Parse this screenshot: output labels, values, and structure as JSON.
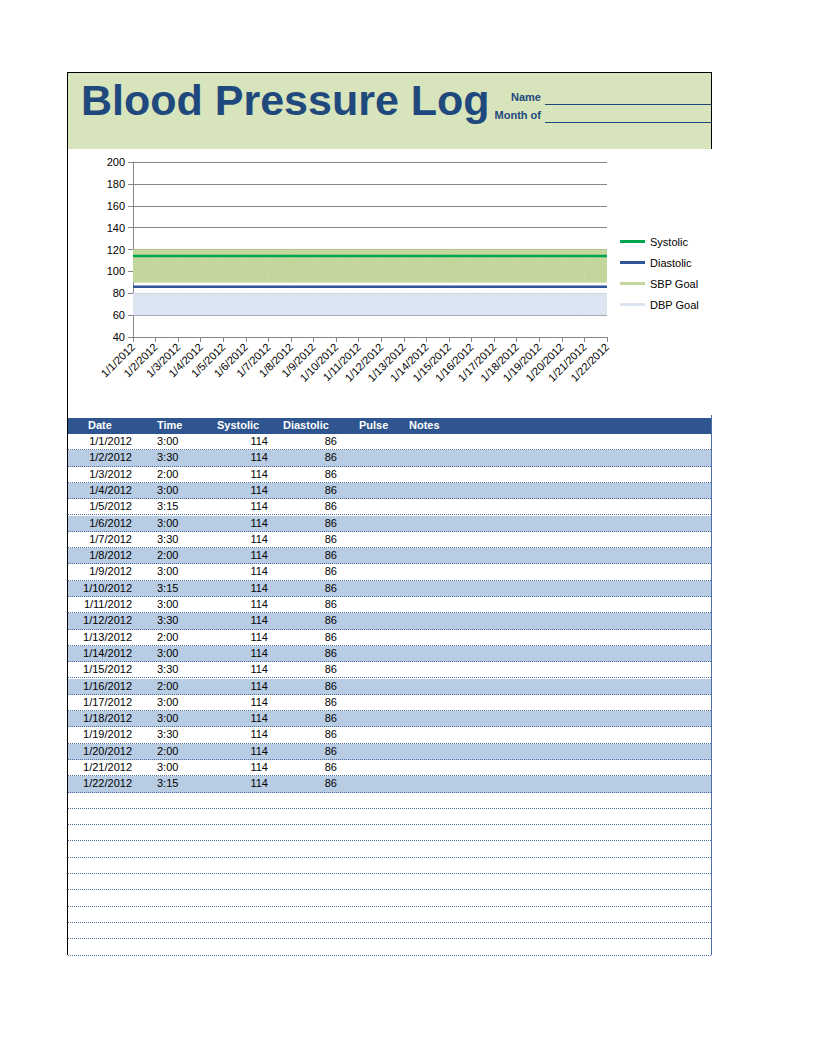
{
  "header": {
    "title": "Blood Pressure Log",
    "fields": [
      "Name",
      "Month of"
    ]
  },
  "chart_data": {
    "type": "line",
    "categories": [
      "1/1/2012",
      "1/2/2012",
      "1/3/2012",
      "1/4/2012",
      "1/5/2012",
      "1/6/2012",
      "1/7/2012",
      "1/8/2012",
      "1/9/2012",
      "1/10/2012",
      "1/11/2012",
      "1/12/2012",
      "1/13/2012",
      "1/14/2012",
      "1/15/2012",
      "1/16/2012",
      "1/17/2012",
      "1/18/2012",
      "1/19/2012",
      "1/20/2012",
      "1/21/2012",
      "1/22/2012"
    ],
    "series": [
      {
        "name": "Systolic",
        "type": "line",
        "color": "#00a550",
        "values": [
          114,
          114,
          114,
          114,
          114,
          114,
          114,
          114,
          114,
          114,
          114,
          114,
          114,
          114,
          114,
          114,
          114,
          114,
          114,
          114,
          114,
          114
        ]
      },
      {
        "name": "Diastolic",
        "type": "line",
        "color": "#2f5597",
        "values": [
          86,
          86,
          86,
          86,
          86,
          86,
          86,
          86,
          86,
          86,
          86,
          86,
          86,
          86,
          86,
          86,
          86,
          86,
          86,
          86,
          86,
          86
        ]
      },
      {
        "name": "SBP Goal",
        "type": "area",
        "color": "#c3d69b",
        "lower": [
          90,
          90,
          90,
          90,
          90,
          90,
          90,
          90,
          90,
          90,
          90,
          90,
          90,
          90,
          90,
          90,
          90,
          90,
          90,
          90,
          90,
          90
        ],
        "values": [
          120,
          120,
          120,
          120,
          120,
          120,
          120,
          120,
          120,
          120,
          120,
          120,
          120,
          120,
          120,
          120,
          120,
          120,
          120,
          120,
          120,
          120
        ]
      },
      {
        "name": "DBP Goal",
        "type": "area",
        "color": "#dce6f2",
        "lower": [
          60,
          60,
          60,
          60,
          60,
          60,
          60,
          60,
          60,
          60,
          60,
          60,
          60,
          60,
          60,
          60,
          60,
          60,
          60,
          60,
          60,
          60
        ],
        "values": [
          80,
          80,
          80,
          80,
          80,
          80,
          80,
          80,
          80,
          80,
          80,
          80,
          80,
          80,
          80,
          80,
          80,
          80,
          80,
          80,
          80,
          80
        ]
      }
    ],
    "ylim": [
      40,
      200
    ],
    "yticks": [
      40,
      60,
      80,
      100,
      120,
      140,
      160,
      180,
      200
    ],
    "grid": true,
    "legend": "right"
  },
  "table": {
    "columns": [
      "Date",
      "Time",
      "Systolic",
      "Diastolic",
      "Pulse",
      "Notes"
    ],
    "rows": [
      [
        "1/1/2012",
        "3:00",
        114,
        86
      ],
      [
        "1/2/2012",
        "3:30",
        114,
        86
      ],
      [
        "1/3/2012",
        "2:00",
        114,
        86
      ],
      [
        "1/4/2012",
        "3:00",
        114,
        86
      ],
      [
        "1/5/2012",
        "3:15",
        114,
        86
      ],
      [
        "1/6/2012",
        "3:00",
        114,
        86
      ],
      [
        "1/7/2012",
        "3:30",
        114,
        86
      ],
      [
        "1/8/2012",
        "2:00",
        114,
        86
      ],
      [
        "1/9/2012",
        "3:00",
        114,
        86
      ],
      [
        "1/10/2012",
        "3:15",
        114,
        86
      ],
      [
        "1/11/2012",
        "3:00",
        114,
        86
      ],
      [
        "1/12/2012",
        "3:30",
        114,
        86
      ],
      [
        "1/13/2012",
        "2:00",
        114,
        86
      ],
      [
        "1/14/2012",
        "3:00",
        114,
        86
      ],
      [
        "1/15/2012",
        "3:30",
        114,
        86
      ],
      [
        "1/16/2012",
        "2:00",
        114,
        86
      ],
      [
        "1/17/2012",
        "3:00",
        114,
        86
      ],
      [
        "1/18/2012",
        "3:00",
        114,
        86
      ],
      [
        "1/19/2012",
        "3:30",
        114,
        86
      ],
      [
        "1/20/2012",
        "2:00",
        114,
        86
      ],
      [
        "1/21/2012",
        "3:00",
        114,
        86
      ],
      [
        "1/22/2012",
        "3:15",
        114,
        86
      ]
    ]
  }
}
